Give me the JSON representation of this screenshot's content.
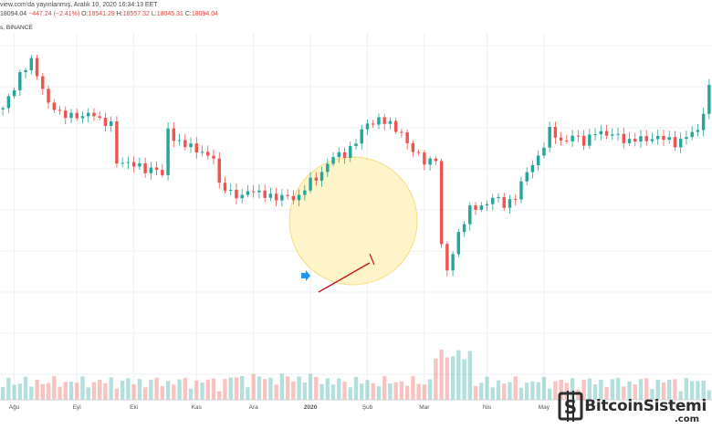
{
  "header": {
    "publish_line": "view.com'da yayınlanmış, Aralık 10, 2020 16:34:13 EET",
    "last": "18094.04",
    "change": "−447.24 (−2.41%)",
    "o_label": "O:",
    "o_value": "18541.29",
    "h_label": "H:",
    "h_value": "18557.32",
    "l_label": "L:",
    "l_value": "18045.31",
    "c_label": "C:",
    "c_value": "18094.04",
    "symbol": "s, BINANCE"
  },
  "watermark": {
    "main": "BitcoinSistemi",
    "sub": ".com"
  },
  "chart_data": {
    "type": "candlestick",
    "x_tick_labels": [
      "Ağu",
      "Eyl",
      "Eki",
      "Kas",
      "Ara",
      "2020",
      "Şub",
      "Mar",
      "Nis",
      "May"
    ],
    "price_path": [
      [
        0,
        10400
      ],
      [
        3,
        11800
      ],
      [
        5,
        12200
      ],
      [
        7,
        11300
      ],
      [
        8,
        10700
      ],
      [
        10,
        10200
      ],
      [
        12,
        10300
      ],
      [
        14,
        10100
      ],
      [
        16,
        10300
      ],
      [
        17,
        10100
      ],
      [
        19,
        9800
      ],
      [
        20,
        8400
      ],
      [
        22,
        8500
      ],
      [
        24,
        8200
      ],
      [
        25,
        8100
      ],
      [
        27,
        8300
      ],
      [
        28,
        7900
      ],
      [
        29,
        9600
      ],
      [
        30,
        9300
      ],
      [
        32,
        9200
      ],
      [
        34,
        8800
      ],
      [
        35,
        8800
      ],
      [
        37,
        8700
      ],
      [
        38,
        7500
      ],
      [
        40,
        7300
      ],
      [
        42,
        7200
      ],
      [
        44,
        7300
      ],
      [
        46,
        7300
      ],
      [
        48,
        7000
      ],
      [
        50,
        7200
      ],
      [
        52,
        7100
      ],
      [
        54,
        7700
      ],
      [
        56,
        8100
      ],
      [
        58,
        8600
      ],
      [
        60,
        8800
      ],
      [
        62,
        9200
      ],
      [
        64,
        9900
      ],
      [
        66,
        10100
      ],
      [
        68,
        9800
      ],
      [
        70,
        9600
      ],
      [
        72,
        8800
      ],
      [
        74,
        8500
      ],
      [
        76,
        8600
      ],
      [
        77,
        5200
      ],
      [
        78,
        4300
      ],
      [
        80,
        5800
      ],
      [
        82,
        6600
      ],
      [
        84,
        6800
      ],
      [
        86,
        7100
      ],
      [
        88,
        6800
      ],
      [
        90,
        7200
      ],
      [
        92,
        8000
      ],
      [
        94,
        8700
      ],
      [
        96,
        9600
      ],
      [
        98,
        9200
      ],
      [
        100,
        9500
      ],
      [
        102,
        9100
      ],
      [
        104,
        9700
      ],
      [
        106,
        9400
      ],
      [
        108,
        9500
      ],
      [
        110,
        9200
      ],
      [
        112,
        9300
      ],
      [
        114,
        9400
      ],
      [
        116,
        9300
      ],
      [
        118,
        9200
      ],
      [
        120,
        9400
      ],
      [
        122,
        9600
      ],
      [
        124,
        11300
      ]
    ],
    "price_range": [
      3800,
      13200
    ],
    "up_color": "#26a69a",
    "down_color": "#ef5350",
    "grid": true,
    "annotations": {
      "highlight_circle_fill": "#fdf3c0",
      "highlight_circle_stroke": "#f6d86a",
      "trend_arrow_color": "#c8141e",
      "marker_arrow_color": "#2196f3"
    }
  }
}
